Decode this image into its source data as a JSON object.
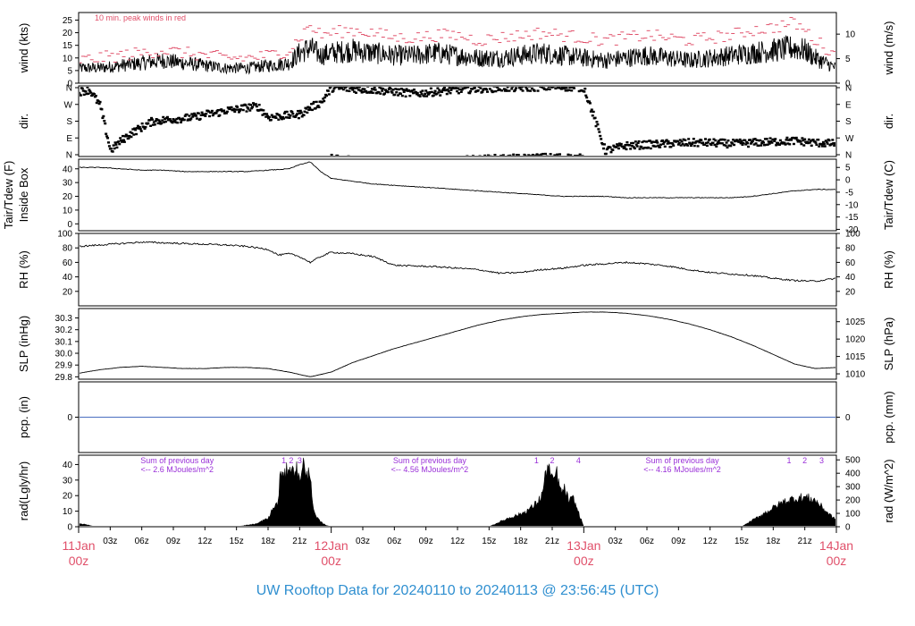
{
  "title": "UW Rooftop Data for 20240110  to  20240113 @ 23:56:45  (UTC)",
  "colors": {
    "title": "#2f8fd0",
    "day_label": "#e0506a",
    "peak": "#e0506a",
    "rad_note": "#9a30d8",
    "zero_line": "#4a6fc0",
    "line": "#000000"
  },
  "chart_data": {
    "type": "line",
    "x_range_hours": [
      0,
      72
    ],
    "x_ticks_minor": [
      "03z",
      "06z",
      "09z",
      "12z",
      "15z",
      "18z",
      "21z",
      "03z",
      "06z",
      "09z",
      "12z",
      "15z",
      "18z",
      "21z",
      "03z",
      "06z",
      "09z",
      "12z",
      "15z",
      "18z",
      "21z"
    ],
    "x_ticks_major": [
      {
        "day": "11Jan",
        "hour": "00z"
      },
      {
        "day": "12Jan",
        "hour": "00z"
      },
      {
        "day": "13Jan",
        "hour": "00z"
      },
      {
        "day": "14Jan",
        "hour": "00z"
      }
    ],
    "panels": [
      {
        "id": "wind",
        "ylabel_left": "wind (kts)",
        "ylabel_right": "wind (m/s)",
        "left_ticks": [
          "0",
          "5",
          "10",
          "15",
          "20",
          "25"
        ],
        "right_ticks": [
          "0",
          "5",
          "10"
        ],
        "ylim": [
          0,
          28
        ],
        "annotation": "10 min. peak winds in red",
        "series": [
          {
            "x": [
              0,
              2,
              4,
              6,
              8,
              10,
              12,
              14,
              16,
              18,
              20,
              21,
              22,
              23,
              24,
              26,
              28,
              30,
              32,
              34,
              36,
              38,
              40,
              42,
              44,
              46,
              48,
              50,
              52,
              54,
              56,
              58,
              60,
              62,
              64,
              66,
              68,
              69,
              70,
              72
            ],
            "values": [
              6,
              6,
              7,
              8,
              9,
              8,
              7,
              6,
              6,
              7,
              8,
              12,
              14,
              11,
              12,
              13,
              12,
              11,
              11,
              12,
              11,
              10,
              10,
              11,
              12,
              11,
              10,
              9,
              10,
              11,
              10,
              9,
              10,
              11,
              12,
              13,
              14,
              13,
              10,
              6
            ]
          },
          {
            "name": "peak",
            "x": [
              0,
              2,
              4,
              6,
              8,
              10,
              12,
              14,
              16,
              18,
              20,
              21,
              22,
              23,
              24,
              26,
              28,
              30,
              32,
              34,
              36,
              38,
              40,
              42,
              44,
              46,
              48,
              50,
              52,
              54,
              56,
              58,
              60,
              62,
              64,
              66,
              68,
              69,
              70,
              72
            ],
            "values": [
              9,
              10,
              11,
              12,
              13,
              12,
              11,
              10,
              10,
              11,
              13,
              18,
              23,
              19,
              20,
              21,
              20,
              18,
              18,
              19,
              19,
              17,
              18,
              19,
              20,
              19,
              18,
              17,
              18,
              19,
              18,
              17,
              18,
              19,
              21,
              22,
              24,
              21,
              17,
              11
            ]
          }
        ]
      },
      {
        "id": "dir",
        "ylabel_left": "dir.",
        "ylabel_right": "dir.",
        "left_ticks": [
          "N",
          "E",
          "S",
          "W",
          "N"
        ],
        "right_ticks": [
          "N",
          "E",
          "S",
          "W",
          "N"
        ],
        "ylim": [
          0,
          360
        ],
        "series": [
          {
            "x": [
              0,
              1,
              2,
              3,
              4,
              5,
              6,
              7,
              8,
              9,
              10,
              11,
              12,
              13,
              14,
              15,
              16,
              17,
              18,
              19,
              20,
              21,
              22,
              23,
              24,
              26,
              28,
              30,
              32,
              34,
              36,
              38,
              40,
              42,
              44,
              46,
              48,
              50,
              52,
              54,
              56,
              58,
              60,
              62,
              64,
              66,
              68,
              70,
              72
            ],
            "values": [
              330,
              340,
              260,
              30,
              80,
              120,
              150,
              180,
              185,
              190,
              195,
              200,
              215,
              220,
              235,
              240,
              250,
              255,
              200,
              205,
              210,
              215,
              250,
              275,
              350,
              345,
              340,
              330,
              320,
              330,
              340,
              345,
              350,
              350,
              355,
              355,
              350,
              30,
              55,
              60,
              65,
              70,
              70,
              65,
              70,
              75,
              80,
              70,
              65
            ]
          }
        ]
      },
      {
        "id": "temp",
        "ylabel_left": "Tair/Tdew (F)",
        "ylabel_left2": "Inside Box",
        "ylabel_right": "Tair/Tdew (C)",
        "left_ticks": [
          "0",
          "10",
          "20",
          "30",
          "40"
        ],
        "right_ticks": [
          "5",
          "0",
          "-5",
          "-10",
          "-15",
          "-20"
        ],
        "ylim": [
          -5,
          47
        ],
        "series": [
          {
            "x": [
              0,
              2,
              4,
              6,
              8,
              10,
              12,
              14,
              16,
              18,
              20,
              21,
              22,
              23,
              24,
              26,
              28,
              30,
              32,
              34,
              36,
              38,
              40,
              42,
              44,
              46,
              48,
              50,
              52,
              54,
              56,
              58,
              60,
              62,
              64,
              66,
              68,
              70,
              72
            ],
            "values": [
              41,
              41,
              40,
              39,
              39,
              38,
              38,
              38,
              38,
              39,
              40,
              43,
              45,
              38,
              33,
              31,
              29,
              28,
              27,
              26,
              25,
              24,
              23,
              22,
              21,
              20,
              20,
              20,
              19,
              19,
              19,
              19,
              19,
              19,
              20,
              22,
              24,
              25,
              25
            ]
          }
        ]
      },
      {
        "id": "rh",
        "ylabel_left": "RH (%)",
        "ylabel_right": "RH (%)",
        "left_ticks": [
          "20",
          "40",
          "60",
          "80",
          "100"
        ],
        "right_ticks": [
          "20",
          "40",
          "60",
          "80",
          "100"
        ],
        "ylim": [
          0,
          100
        ],
        "series": [
          {
            "x": [
              0,
              2,
              4,
              6,
              8,
              10,
              12,
              14,
              16,
              18,
              19,
              20,
              21,
              22,
              23,
              24,
              26,
              28,
              30,
              32,
              34,
              36,
              38,
              40,
              42,
              44,
              46,
              48,
              50,
              52,
              54,
              56,
              58,
              60,
              62,
              64,
              66,
              68,
              70,
              72
            ],
            "values": [
              82,
              84,
              86,
              88,
              87,
              86,
              85,
              84,
              82,
              78,
              70,
              72,
              68,
              60,
              68,
              74,
              72,
              68,
              56,
              55,
              54,
              52,
              50,
              45,
              46,
              50,
              52,
              56,
              58,
              60,
              58,
              55,
              50,
              46,
              44,
              42,
              38,
              35,
              34,
              38
            ]
          }
        ]
      },
      {
        "id": "slp",
        "ylabel_left": "SLP (inHg)",
        "ylabel_right": "SLP (hPa)",
        "left_ticks": [
          "29.8",
          "29.9",
          "30.0",
          "30.1",
          "30.2",
          "30.3"
        ],
        "right_ticks": [
          "1010",
          "1015",
          "1020",
          "1025"
        ],
        "ylim": [
          29.78,
          30.38
        ],
        "series": [
          {
            "x": [
              0,
              2,
              4,
              6,
              8,
              10,
              12,
              14,
              16,
              18,
              20,
              22,
              24,
              26,
              28,
              30,
              32,
              34,
              36,
              38,
              40,
              42,
              44,
              46,
              48,
              50,
              52,
              54,
              56,
              58,
              60,
              62,
              64,
              66,
              68,
              70,
              72
            ],
            "values": [
              29.83,
              29.86,
              29.88,
              29.89,
              29.88,
              29.87,
              29.87,
              29.88,
              29.88,
              29.87,
              29.84,
              29.8,
              29.84,
              29.92,
              29.98,
              30.04,
              30.09,
              30.14,
              30.19,
              30.24,
              30.28,
              30.31,
              30.33,
              30.34,
              30.35,
              30.35,
              30.34,
              30.32,
              30.29,
              30.25,
              30.2,
              30.14,
              30.07,
              29.99,
              29.91,
              29.87,
              29.88
            ]
          }
        ]
      },
      {
        "id": "pcp",
        "ylabel_left": "pcp. (in)",
        "ylabel_right": "pcp. (mm)",
        "left_ticks": [
          "0"
        ],
        "right_ticks": [
          "0"
        ],
        "ylim": [
          -1,
          1
        ],
        "series": [
          {
            "x": [
              0,
              72
            ],
            "values": [
              0,
              0
            ]
          }
        ]
      },
      {
        "id": "rad",
        "ylabel_left": "rad(Lgly/hr)",
        "ylabel_right": "rad (W/m^2)",
        "left_ticks": [
          "0",
          "10",
          "20",
          "30",
          "40"
        ],
        "right_ticks": [
          "0",
          "100",
          "200",
          "300",
          "400",
          "500"
        ],
        "ylim": [
          0,
          46
        ],
        "notes": [
          {
            "line1": "Sum of previous day",
            "line2": "<-- 2.6 MJoules/m^2",
            "x": 8
          },
          {
            "line1": "Sum of previous day",
            "line2": "<-- 4.56 MJoules/m^2",
            "x": 32
          },
          {
            "line1": "Sum of previous day",
            "line2": "<-- 4.16 MJoules/m^2",
            "x": 56
          }
        ],
        "markers": [
          {
            "label": "1",
            "x": 19.5
          },
          {
            "label": "2",
            "x": 20.2
          },
          {
            "label": "3",
            "x": 21.0
          },
          {
            "label": "1",
            "x": 43.5
          },
          {
            "label": "2",
            "x": 45.0
          },
          {
            "label": "4",
            "x": 47.5
          },
          {
            "label": "1",
            "x": 67.5
          },
          {
            "label": "2",
            "x": 69.0
          },
          {
            "label": "3",
            "x": 70.6
          }
        ],
        "series": [
          {
            "x": [
              0,
              0.5,
              1,
              1.5,
              15,
              16,
              17,
              17.5,
              18,
              18.5,
              19,
              19.2,
              19.5,
              19.8,
              20,
              20.3,
              20.6,
              21,
              21.3,
              21.6,
              22,
              22.3,
              22.6,
              23,
              23.5,
              24,
              39,
              40,
              41,
              42,
              43,
              43.5,
              44,
              44.3,
              44.6,
              45,
              45.4,
              45.8,
              46.2,
              46.6,
              47,
              47.5,
              48,
              63,
              64,
              65,
              66,
              67,
              68,
              69,
              70,
              71,
              72
            ],
            "values": [
              2,
              1.5,
              1,
              0,
              0,
              1,
              2,
              4,
              5,
              12,
              16,
              38,
              30,
              36,
              41,
              34,
              40,
              28,
              44,
              30,
              37,
              10,
              6,
              3,
              1,
              0,
              0,
              3,
              6,
              8,
              12,
              15,
              20,
              30,
              41,
              28,
              35,
              22,
              24,
              16,
              18,
              9,
              0,
              0,
              4,
              8,
              12,
              16,
              18,
              19,
              17,
              10,
              4
            ]
          }
        ]
      }
    ]
  }
}
